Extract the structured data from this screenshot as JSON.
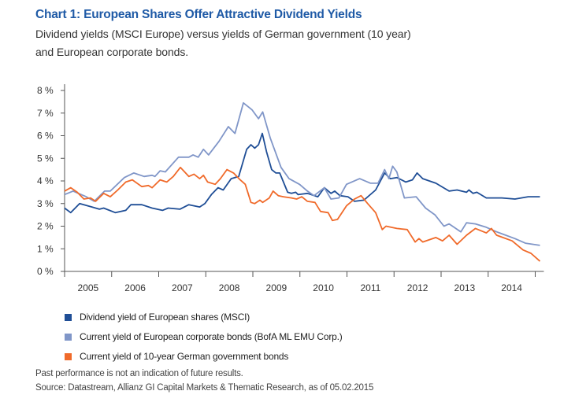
{
  "chart_data": {
    "type": "line",
    "title": "Chart 1: European Shares Offer Attractive Dividend Yields",
    "subtitle_lines": [
      "Dividend yields (MSCI Europe) versus yields of German government (10 year)",
      "and European corporate bonds."
    ],
    "y_ticks": [
      "0 %",
      "1 %",
      "2 %",
      "3 %",
      "4 %",
      "5 %",
      "6 %",
      "7 %",
      "8 %"
    ],
    "ylim": [
      0,
      8
    ],
    "xlim": [
      2005,
      2015.1
    ],
    "x_ticks": [
      "2005",
      "2006",
      "2007",
      "2008",
      "2009",
      "2010",
      "2011",
      "2012",
      "2013",
      "2014"
    ],
    "grid": false,
    "legend_placement": "bottom",
    "series": [
      {
        "name": "Dividend yield of European shares (MSCI)",
        "color": "#1f4e96",
        "points": [
          [
            2005.0,
            2.8
          ],
          [
            2005.13,
            2.6
          ],
          [
            2005.32,
            3.0
          ],
          [
            2005.58,
            2.85
          ],
          [
            2005.66,
            2.8
          ],
          [
            2005.74,
            2.75
          ],
          [
            2005.83,
            2.8
          ],
          [
            2006.08,
            2.6
          ],
          [
            2006.3,
            2.7
          ],
          [
            2006.41,
            2.95
          ],
          [
            2006.64,
            2.95
          ],
          [
            2006.86,
            2.8
          ],
          [
            2007.08,
            2.7
          ],
          [
            2007.2,
            2.8
          ],
          [
            2007.45,
            2.75
          ],
          [
            2007.64,
            2.95
          ],
          [
            2007.87,
            2.85
          ],
          [
            2007.98,
            3.0
          ],
          [
            2008.12,
            3.4
          ],
          [
            2008.26,
            3.7
          ],
          [
            2008.37,
            3.6
          ],
          [
            2008.54,
            4.1
          ],
          [
            2008.7,
            4.2
          ],
          [
            2008.87,
            5.4
          ],
          [
            2008.96,
            5.6
          ],
          [
            2009.04,
            5.45
          ],
          [
            2009.12,
            5.6
          ],
          [
            2009.2,
            6.1
          ],
          [
            2009.29,
            5.3
          ],
          [
            2009.4,
            4.5
          ],
          [
            2009.49,
            4.35
          ],
          [
            2009.57,
            4.35
          ],
          [
            2009.74,
            3.5
          ],
          [
            2009.82,
            3.45
          ],
          [
            2009.91,
            3.5
          ],
          [
            2009.96,
            3.4
          ],
          [
            2010.16,
            3.45
          ],
          [
            2010.38,
            3.3
          ],
          [
            2010.52,
            3.7
          ],
          [
            2010.66,
            3.45
          ],
          [
            2010.74,
            3.55
          ],
          [
            2010.85,
            3.35
          ],
          [
            2011.02,
            3.3
          ],
          [
            2011.16,
            3.1
          ],
          [
            2011.36,
            3.15
          ],
          [
            2011.61,
            3.6
          ],
          [
            2011.8,
            4.35
          ],
          [
            2011.92,
            4.1
          ],
          [
            2012.06,
            4.15
          ],
          [
            2012.25,
            3.95
          ],
          [
            2012.39,
            4.05
          ],
          [
            2012.49,
            4.35
          ],
          [
            2012.61,
            4.1
          ],
          [
            2012.89,
            3.9
          ],
          [
            2013.17,
            3.55
          ],
          [
            2013.34,
            3.6
          ],
          [
            2013.54,
            3.5
          ],
          [
            2013.59,
            3.6
          ],
          [
            2013.68,
            3.45
          ],
          [
            2013.76,
            3.5
          ],
          [
            2013.96,
            3.25
          ],
          [
            2014.29,
            3.25
          ],
          [
            2014.57,
            3.2
          ],
          [
            2014.85,
            3.3
          ],
          [
            2015.1,
            3.3
          ]
        ]
      },
      {
        "name": "Current yield of European corporate bonds (BofA ML EMU Corp.)",
        "color": "#8096c8",
        "points": [
          [
            2005.0,
            3.4
          ],
          [
            2005.18,
            3.55
          ],
          [
            2005.46,
            3.3
          ],
          [
            2005.63,
            3.1
          ],
          [
            2005.85,
            3.55
          ],
          [
            2005.97,
            3.55
          ],
          [
            2006.27,
            4.15
          ],
          [
            2006.47,
            4.35
          ],
          [
            2006.69,
            4.2
          ],
          [
            2006.86,
            4.25
          ],
          [
            2006.92,
            4.2
          ],
          [
            2007.03,
            4.45
          ],
          [
            2007.14,
            4.4
          ],
          [
            2007.42,
            5.05
          ],
          [
            2007.64,
            5.05
          ],
          [
            2007.73,
            5.15
          ],
          [
            2007.84,
            5.05
          ],
          [
            2007.95,
            5.4
          ],
          [
            2008.06,
            5.15
          ],
          [
            2008.28,
            5.75
          ],
          [
            2008.48,
            6.4
          ],
          [
            2008.62,
            6.1
          ],
          [
            2008.8,
            7.45
          ],
          [
            2008.98,
            7.15
          ],
          [
            2009.12,
            6.75
          ],
          [
            2009.21,
            7.05
          ],
          [
            2009.37,
            5.9
          ],
          [
            2009.6,
            4.6
          ],
          [
            2009.77,
            4.1
          ],
          [
            2009.99,
            3.85
          ],
          [
            2010.16,
            3.55
          ],
          [
            2010.3,
            3.35
          ],
          [
            2010.52,
            3.7
          ],
          [
            2010.66,
            3.2
          ],
          [
            2010.83,
            3.25
          ],
          [
            2010.99,
            3.85
          ],
          [
            2011.27,
            4.1
          ],
          [
            2011.5,
            3.9
          ],
          [
            2011.66,
            3.9
          ],
          [
            2011.8,
            4.5
          ],
          [
            2011.89,
            4.1
          ],
          [
            2011.97,
            4.65
          ],
          [
            2012.06,
            4.4
          ],
          [
            2012.22,
            3.25
          ],
          [
            2012.47,
            3.3
          ],
          [
            2012.67,
            2.8
          ],
          [
            2012.87,
            2.5
          ],
          [
            2013.06,
            2.0
          ],
          [
            2013.17,
            2.1
          ],
          [
            2013.42,
            1.75
          ],
          [
            2013.54,
            2.15
          ],
          [
            2013.73,
            2.1
          ],
          [
            2013.96,
            1.95
          ],
          [
            2014.18,
            1.75
          ],
          [
            2014.57,
            1.45
          ],
          [
            2014.79,
            1.25
          ],
          [
            2015.1,
            1.15
          ]
        ]
      },
      {
        "name": "Current yield of 10-year German government bonds",
        "color": "#f06a2a",
        "points": [
          [
            2005.0,
            3.55
          ],
          [
            2005.13,
            3.7
          ],
          [
            2005.27,
            3.5
          ],
          [
            2005.41,
            3.2
          ],
          [
            2005.55,
            3.25
          ],
          [
            2005.66,
            3.1
          ],
          [
            2005.83,
            3.45
          ],
          [
            2005.97,
            3.3
          ],
          [
            2006.13,
            3.6
          ],
          [
            2006.3,
            3.95
          ],
          [
            2006.44,
            4.05
          ],
          [
            2006.64,
            3.75
          ],
          [
            2006.78,
            3.8
          ],
          [
            2006.86,
            3.7
          ],
          [
            2007.03,
            4.05
          ],
          [
            2007.17,
            3.95
          ],
          [
            2007.31,
            4.2
          ],
          [
            2007.46,
            4.6
          ],
          [
            2007.64,
            4.2
          ],
          [
            2007.75,
            4.3
          ],
          [
            2007.87,
            4.1
          ],
          [
            2007.95,
            4.25
          ],
          [
            2008.04,
            3.95
          ],
          [
            2008.2,
            3.85
          ],
          [
            2008.31,
            4.1
          ],
          [
            2008.45,
            4.5
          ],
          [
            2008.59,
            4.35
          ],
          [
            2008.73,
            4.05
          ],
          [
            2008.84,
            3.85
          ],
          [
            2008.96,
            3.05
          ],
          [
            2009.04,
            3.0
          ],
          [
            2009.15,
            3.15
          ],
          [
            2009.21,
            3.05
          ],
          [
            2009.35,
            3.25
          ],
          [
            2009.43,
            3.55
          ],
          [
            2009.54,
            3.35
          ],
          [
            2009.65,
            3.3
          ],
          [
            2009.82,
            3.25
          ],
          [
            2009.93,
            3.2
          ],
          [
            2010.04,
            3.3
          ],
          [
            2010.16,
            3.1
          ],
          [
            2010.32,
            3.05
          ],
          [
            2010.44,
            2.65
          ],
          [
            2010.6,
            2.6
          ],
          [
            2010.69,
            2.25
          ],
          [
            2010.8,
            2.3
          ],
          [
            2010.99,
            2.9
          ],
          [
            2011.16,
            3.2
          ],
          [
            2011.3,
            3.35
          ],
          [
            2011.44,
            3.0
          ],
          [
            2011.61,
            2.6
          ],
          [
            2011.75,
            1.85
          ],
          [
            2011.83,
            2.0
          ],
          [
            2011.94,
            1.95
          ],
          [
            2012.06,
            1.9
          ],
          [
            2012.28,
            1.85
          ],
          [
            2012.45,
            1.3
          ],
          [
            2012.53,
            1.45
          ],
          [
            2012.61,
            1.3
          ],
          [
            2012.89,
            1.5
          ],
          [
            2013.03,
            1.35
          ],
          [
            2013.17,
            1.6
          ],
          [
            2013.34,
            1.2
          ],
          [
            2013.54,
            1.6
          ],
          [
            2013.73,
            1.9
          ],
          [
            2013.96,
            1.7
          ],
          [
            2014.07,
            1.9
          ],
          [
            2014.18,
            1.6
          ],
          [
            2014.51,
            1.35
          ],
          [
            2014.74,
            0.95
          ],
          [
            2014.91,
            0.8
          ],
          [
            2015.1,
            0.45
          ]
        ]
      }
    ]
  },
  "footnotes": {
    "disclaimer": "Past performance is not an indication of future results.",
    "source": "Source: Datastream, Allianz GI Capital Markets & Thematic Research, as of 05.02.2015"
  }
}
